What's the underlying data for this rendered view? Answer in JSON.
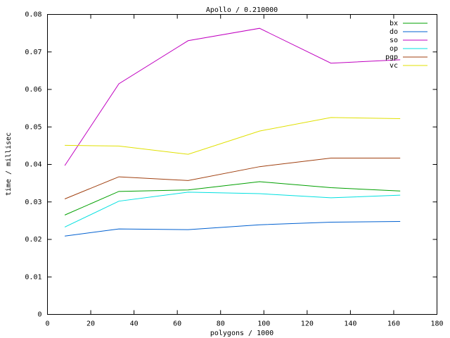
{
  "chart_data": {
    "type": "line",
    "title": "Apollo / 0.210000",
    "x_label": "polygons / 1000",
    "y_label": "time / millisec",
    "x": [
      8,
      33,
      65,
      98,
      131,
      163
    ],
    "series": [
      {
        "name": "bx",
        "color": "#00a000",
        "values": [
          0.0265,
          0.0328,
          0.0332,
          0.0354,
          0.0338,
          0.0329
        ]
      },
      {
        "name": "do",
        "color": "#0060d0",
        "values": [
          0.0209,
          0.0228,
          0.0226,
          0.0239,
          0.0246,
          0.0248
        ]
      },
      {
        "name": "so",
        "color": "#c000c0",
        "values": [
          0.0397,
          0.0615,
          0.073,
          0.0763,
          0.067,
          0.0679
        ]
      },
      {
        "name": "op",
        "color": "#00e0e0",
        "values": [
          0.0233,
          0.0302,
          0.0326,
          0.0322,
          0.0311,
          0.0318
        ]
      },
      {
        "name": "pgp",
        "color": "#a04010",
        "values": [
          0.0308,
          0.0367,
          0.0357,
          0.0394,
          0.0417,
          0.0417
        ]
      },
      {
        "name": "vc",
        "color": "#e0e000",
        "values": [
          0.0451,
          0.0449,
          0.0427,
          0.0489,
          0.0525,
          0.0522
        ]
      }
    ],
    "xlim": [
      0,
      180
    ],
    "xticks": [
      0,
      20,
      40,
      60,
      80,
      100,
      120,
      140,
      160,
      180
    ],
    "ylim": [
      0,
      0.08
    ],
    "yticks": [
      0,
      0.01,
      0.02,
      0.03,
      0.04,
      0.05,
      0.06,
      0.07,
      0.08
    ],
    "legend": "top-right"
  }
}
